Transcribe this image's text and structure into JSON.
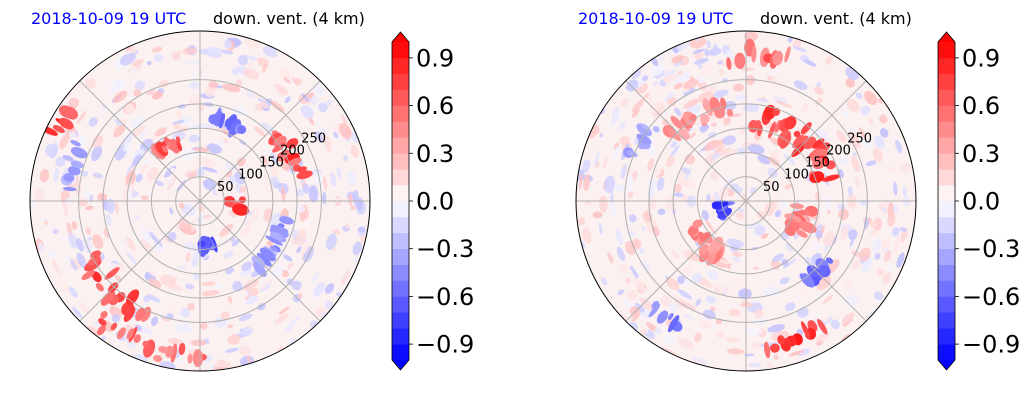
{
  "chart_data": [
    {
      "type": "heatmap",
      "projection": "polar",
      "title_date": "2018-10-09 19 UTC",
      "title_field": "down. vent. (4 km)",
      "radial_ticks": [
        "50",
        "100",
        "150",
        "200",
        "250"
      ],
      "radial_values": [
        50,
        100,
        150,
        200,
        250
      ],
      "angular_gridlines_deg": [
        0,
        45,
        90,
        135,
        180,
        225,
        270,
        315
      ],
      "colorbar": {
        "ticks": [
          "0.9",
          "0.6",
          "0.3",
          "0.0",
          "−0.3",
          "−0.6",
          "−0.9"
        ],
        "tick_values": [
          0.9,
          0.6,
          0.3,
          0.0,
          -0.3,
          -0.6,
          -0.9
        ],
        "range": [
          -1.0,
          1.0
        ],
        "levels": 20,
        "extend": "both",
        "colormap": "bwr",
        "colors": {
          "min": "#0000ff",
          "mid": "#ffffff",
          "max": "#ff0000"
        }
      },
      "grid": true,
      "features": [
        {
          "sign": "positive",
          "azimuth_deg": 62,
          "range": 210,
          "length_deg": 30,
          "width": 30,
          "intensity": 0.9
        },
        {
          "sign": "positive",
          "azimuth_deg": 95,
          "range": 85,
          "length_deg": 15,
          "width": 60,
          "intensity": 0.95
        },
        {
          "sign": "positive",
          "azimuth_deg": 225,
          "range": 255,
          "length_deg": 40,
          "width": 45,
          "intensity": 0.85
        },
        {
          "sign": "positive",
          "azimuth_deg": 200,
          "range": 320,
          "length_deg": 45,
          "width": 35,
          "intensity": 0.75
        },
        {
          "sign": "positive",
          "azimuth_deg": 330,
          "range": 130,
          "length_deg": 25,
          "width": 25,
          "intensity": 0.8
        },
        {
          "sign": "positive",
          "azimuth_deg": 300,
          "range": 330,
          "length_deg": 12,
          "width": 25,
          "intensity": 0.9
        },
        {
          "sign": "negative",
          "azimuth_deg": 20,
          "range": 170,
          "length_deg": 25,
          "width": 20,
          "intensity": 0.7
        },
        {
          "sign": "negative",
          "azimuth_deg": 170,
          "range": 90,
          "length_deg": 20,
          "width": 20,
          "intensity": 0.75
        },
        {
          "sign": "negative",
          "azimuth_deg": 285,
          "range": 270,
          "length_deg": 20,
          "width": 40,
          "intensity": 0.45
        },
        {
          "sign": "negative",
          "azimuth_deg": 120,
          "range": 180,
          "length_deg": 40,
          "width": 15,
          "intensity": 0.5
        }
      ]
    },
    {
      "type": "heatmap",
      "projection": "polar",
      "title_date": "2018-10-09 19 UTC",
      "title_field": "down. vent. (4 km)",
      "radial_ticks": [
        "50",
        "100",
        "150",
        "200",
        "250"
      ],
      "radial_values": [
        50,
        100,
        150,
        200,
        250
      ],
      "angular_gridlines_deg": [
        0,
        45,
        90,
        135,
        180,
        225,
        270,
        315
      ],
      "colorbar": {
        "ticks": [
          "0.9",
          "0.6",
          "0.3",
          "0.0",
          "−0.3",
          "−0.6",
          "−0.9"
        ],
        "tick_values": [
          0.9,
          0.6,
          0.3,
          0.0,
          -0.3,
          -0.6,
          -0.9
        ],
        "range": [
          -1.0,
          1.0
        ],
        "levels": 20,
        "extend": "both",
        "colormap": "bwr",
        "colors": {
          "min": "#0000ff",
          "mid": "#ffffff",
          "max": "#ff0000"
        }
      },
      "grid": true,
      "features": [
        {
          "sign": "positive",
          "azimuth_deg": 40,
          "range": 170,
          "length_deg": 70,
          "width": 50,
          "intensity": 0.9
        },
        {
          "sign": "positive",
          "azimuth_deg": 5,
          "range": 300,
          "length_deg": 25,
          "width": 40,
          "intensity": 0.75
        },
        {
          "sign": "positive",
          "azimuth_deg": 330,
          "range": 200,
          "length_deg": 40,
          "width": 40,
          "intensity": 0.55
        },
        {
          "sign": "positive",
          "azimuth_deg": 110,
          "range": 120,
          "length_deg": 30,
          "width": 35,
          "intensity": 0.6
        },
        {
          "sign": "positive",
          "azimuth_deg": 225,
          "range": 130,
          "length_deg": 40,
          "width": 40,
          "intensity": 0.55
        },
        {
          "sign": "positive",
          "azimuth_deg": 160,
          "range": 300,
          "length_deg": 25,
          "width": 20,
          "intensity": 0.95
        },
        {
          "sign": "negative",
          "azimuth_deg": 250,
          "range": 50,
          "length_deg": 30,
          "width": 20,
          "intensity": 0.85
        },
        {
          "sign": "negative",
          "azimuth_deg": 135,
          "range": 210,
          "length_deg": 20,
          "width": 20,
          "intensity": 0.8
        },
        {
          "sign": "negative",
          "azimuth_deg": 215,
          "range": 290,
          "length_deg": 15,
          "width": 15,
          "intensity": 0.7
        },
        {
          "sign": "negative",
          "azimuth_deg": 300,
          "range": 250,
          "length_deg": 20,
          "width": 30,
          "intensity": 0.45
        }
      ]
    }
  ]
}
